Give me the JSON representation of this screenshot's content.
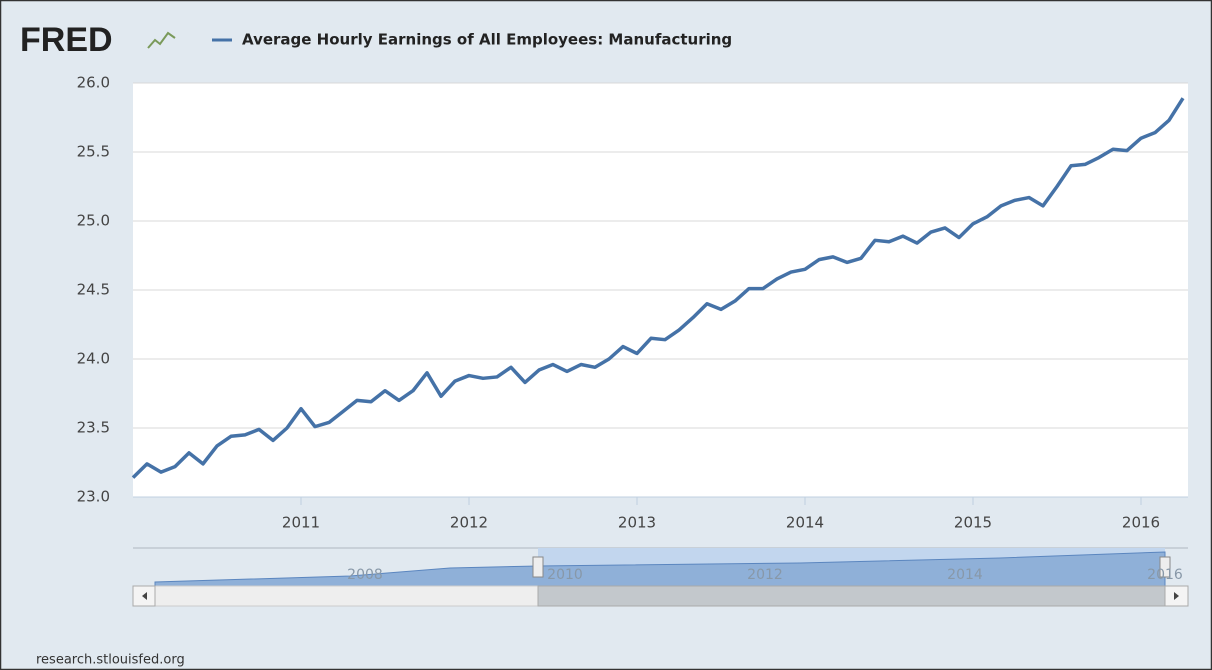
{
  "logo": "FRED",
  "footer": "research.stlouisfed.org",
  "chart_data": {
    "type": "line",
    "categories": [
      null,
      null,
      null,
      null,
      null,
      null,
      null,
      null,
      null,
      null,
      null,
      null,
      "2011",
      null,
      null,
      null,
      null,
      null,
      null,
      null,
      null,
      null,
      null,
      null,
      "2012",
      null,
      null,
      null,
      null,
      null,
      null,
      null,
      null,
      null,
      null,
      null,
      "2013",
      null,
      null,
      null,
      null,
      null,
      null,
      null,
      null,
      null,
      null,
      null,
      "2014",
      null,
      null,
      null,
      null,
      null,
      null,
      null,
      null,
      null,
      null,
      null,
      "2015",
      null,
      null,
      null,
      null,
      null,
      null,
      null,
      null,
      null,
      null,
      null,
      "2016",
      null,
      null,
      null
    ],
    "series": [
      {
        "name": "Average Hourly Earnings of All Employees: Manufacturing",
        "color": "#4572a7",
        "values": [
          23.14,
          23.24,
          23.18,
          23.22,
          23.32,
          23.24,
          23.37,
          23.44,
          23.45,
          23.49,
          23.41,
          23.5,
          23.64,
          23.51,
          23.54,
          23.62,
          23.7,
          23.69,
          23.77,
          23.7,
          23.77,
          23.9,
          23.73,
          23.84,
          23.88,
          23.86,
          23.87,
          23.94,
          23.83,
          23.92,
          23.96,
          23.91,
          23.96,
          23.94,
          24.0,
          24.09,
          24.04,
          24.15,
          24.14,
          24.21,
          24.3,
          24.4,
          24.36,
          24.42,
          24.51,
          24.51,
          24.58,
          24.63,
          24.65,
          24.72,
          24.74,
          24.7,
          24.73,
          24.86,
          24.85,
          24.89,
          24.84,
          24.92,
          24.95,
          24.88,
          24.98,
          25.03,
          25.11,
          25.15,
          25.17,
          25.11,
          25.25,
          25.4,
          25.41,
          25.46,
          25.52,
          25.51,
          25.6,
          25.64,
          25.73,
          25.89
        ]
      }
    ],
    "ylim": [
      23,
      26
    ],
    "yticks": [
      {
        "value": 23,
        "label": "23.0"
      },
      {
        "value": 23.5,
        "label": "23.5"
      },
      {
        "value": 24,
        "label": "24.0"
      },
      {
        "value": 24.5,
        "label": "24.5"
      },
      {
        "value": 25,
        "label": "25.0"
      },
      {
        "value": 25.5,
        "label": "25.5"
      },
      {
        "value": 26,
        "label": "26.0"
      }
    ],
    "grid": true,
    "navigator_labels": [
      "2008",
      "2010",
      "2012",
      "2014",
      "2016"
    ]
  }
}
